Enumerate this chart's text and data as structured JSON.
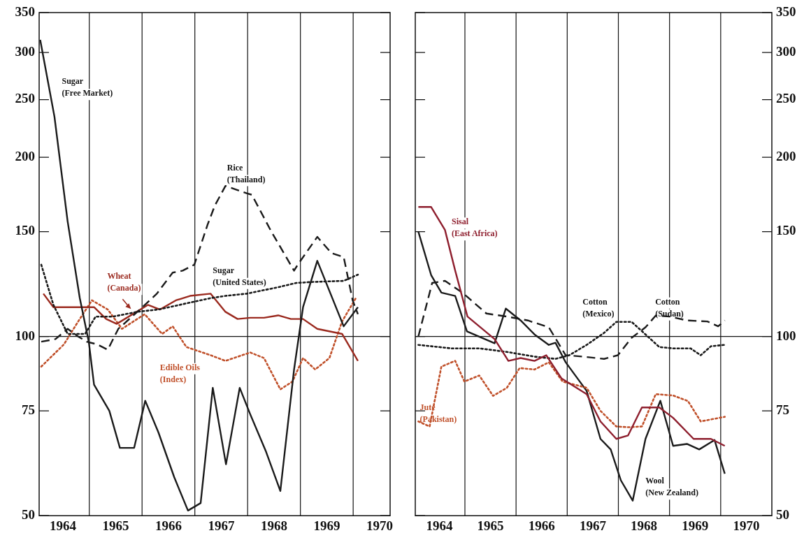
{
  "chart_data": [
    {
      "type": "line",
      "log": "y",
      "grid": false,
      "legend": false,
      "marker": "none",
      "xlim": [
        1963.55,
        1970.2
      ],
      "xticks": [
        1964,
        1965,
        1966,
        1967,
        1968,
        1969,
        1970
      ],
      "ylim": [
        50,
        350
      ],
      "yticks": [
        50,
        75,
        100,
        150,
        200,
        250,
        300,
        350
      ],
      "ref_lines": [
        {
          "axis": "y",
          "value": 100
        },
        {
          "axis": "x",
          "value": 1964.5
        },
        {
          "axis": "x",
          "value": 1965.5
        },
        {
          "axis": "x",
          "value": 1966.5
        },
        {
          "axis": "x",
          "value": 1967.5
        },
        {
          "axis": "x",
          "value": 1968.5
        },
        {
          "axis": "x",
          "value": 1969.5
        }
      ],
      "series": [
        {
          "name": "Sugar (Free Market)",
          "color": "#1a1a1a",
          "line_style": "solid",
          "x": [
            1963.57,
            1963.84,
            1964.09,
            1964.32,
            1964.49,
            1964.59,
            1964.88,
            1965.08,
            1965.35,
            1965.56,
            1965.81,
            1966.11,
            1966.37,
            1966.61,
            1966.84,
            1967.09,
            1967.35,
            1967.55,
            1967.85,
            1968.12,
            1968.38,
            1968.55,
            1968.82,
            1969.32,
            1969.59
          ],
          "values": [
            315,
            234,
            156,
            116,
            98,
            83,
            75,
            65,
            65,
            78,
            69,
            58,
            51,
            52.5,
            82,
            61,
            82,
            74,
            64,
            55,
            88,
            112,
            134,
            104,
            112
          ]
        },
        {
          "name": "Rice (Thailand)",
          "color": "#1a1a1a",
          "line_style": "dashed",
          "x": [
            1963.59,
            1963.86,
            1964.09,
            1964.29,
            1964.45,
            1964.65,
            1964.85,
            1965.05,
            1965.41,
            1965.78,
            1966.08,
            1966.27,
            1966.49,
            1966.74,
            1966.88,
            1967.08,
            1967.48,
            1967.58,
            1967.95,
            1968.38,
            1968.45,
            1968.82,
            1969.09,
            1969.32,
            1969.49,
            1969.59
          ],
          "values": [
            98,
            99,
            103,
            100,
            98,
            97,
            95,
            103,
            110,
            118,
            128,
            129,
            132,
            154,
            166,
            179,
            174,
            173,
            150,
            129,
            132,
            147,
            138,
            136,
            115,
            109
          ]
        },
        {
          "name": "Sugar (United States)",
          "color": "#1a1a1a",
          "line_style": "dotted",
          "x": [
            1963.59,
            1963.82,
            1964.09,
            1964.42,
            1964.62,
            1964.95,
            1965.41,
            1965.81,
            1966.21,
            1966.8,
            1967.08,
            1967.48,
            1968.08,
            1968.42,
            1968.75,
            1969.32,
            1969.59
          ],
          "values": [
            132,
            113,
            101,
            101,
            108,
            108,
            110,
            111,
            113,
            116,
            117,
            118,
            121,
            123,
            123.5,
            124,
            127
          ]
        },
        {
          "name": "Wheat (Canada)",
          "color": "#9b2a1f",
          "line_style": "solid",
          "x": [
            1963.63,
            1963.82,
            1964.59,
            1964.82,
            1965.02,
            1965.61,
            1965.84,
            1966.14,
            1966.41,
            1966.8,
            1967.08,
            1967.31,
            1967.55,
            1967.81,
            1968.08,
            1968.32,
            1968.55,
            1968.82,
            1969.29,
            1969.59
          ],
          "values": [
            118,
            112,
            112,
            107,
            105,
            113,
            111,
            115,
            117,
            118,
            110,
            107,
            107.5,
            107.5,
            108.5,
            107,
            107,
            103,
            101,
            91
          ]
        },
        {
          "name": "Edible Oils (Index)",
          "color": "#c0502a",
          "line_style": "dotted",
          "x": [
            1963.59,
            1964.02,
            1964.29,
            1964.55,
            1964.85,
            1965.12,
            1965.55,
            1965.88,
            1966.08,
            1966.34,
            1966.8,
            1967.08,
            1967.55,
            1967.81,
            1968.12,
            1968.35,
            1968.55,
            1968.78,
            1969.05,
            1969.29,
            1969.55
          ],
          "values": [
            89,
            97,
            106,
            115,
            111,
            103,
            109,
            101,
            104,
            96,
            93,
            91,
            94,
            92,
            81.5,
            84,
            92,
            88,
            92,
            106,
            116
          ]
        }
      ]
    },
    {
      "type": "line",
      "log": "y",
      "grid": false,
      "legend": false,
      "marker": "none",
      "xlim": [
        1963.53,
        1970.5
      ],
      "xticks": [
        1964,
        1965,
        1966,
        1967,
        1968,
        1969,
        1970
      ],
      "ylim": [
        50,
        350
      ],
      "yticks": [
        50,
        75,
        100,
        150,
        200,
        250,
        300,
        350
      ],
      "ref_lines": [
        {
          "axis": "y",
          "value": 100
        },
        {
          "axis": "x",
          "value": 1964.5
        },
        {
          "axis": "x",
          "value": 1965.5
        },
        {
          "axis": "x",
          "value": 1966.5
        },
        {
          "axis": "x",
          "value": 1967.5
        },
        {
          "axis": "x",
          "value": 1968.5
        },
        {
          "axis": "x",
          "value": 1969.5
        }
      ],
      "series": [
        {
          "name": "Sisal (East Africa)",
          "color": "#8e1f2e",
          "line_style": "solid",
          "x": [
            1963.59,
            1963.84,
            1964.11,
            1964.31,
            1964.55,
            1965.08,
            1965.35,
            1965.59,
            1965.86,
            1966.09,
            1966.39,
            1966.88,
            1967.15,
            1967.46,
            1967.69,
            1967.96,
            1968.3,
            1968.57,
            1968.97,
            1969.31,
            1969.58
          ],
          "values": [
            165,
            165,
            151,
            129,
            108,
            99,
            91,
            92,
            91,
            93,
            85,
            80,
            72,
            67.3,
            68.2,
            76,
            76,
            73,
            67.3,
            67.3,
            65.5
          ]
        },
        {
          "name": "Jute (Pakistan)",
          "color": "#c0502a",
          "line_style": "dotted",
          "x": [
            1963.59,
            1963.81,
            1964.04,
            1964.31,
            1964.49,
            1964.78,
            1965.05,
            1965.32,
            1965.57,
            1965.86,
            1966.14,
            1966.41,
            1966.88,
            1967.15,
            1967.46,
            1967.69,
            1967.96,
            1968.23,
            1968.57,
            1968.86,
            1969.11,
            1969.58
          ],
          "values": [
            72,
            70.6,
            89,
            91,
            84,
            86,
            79.5,
            82,
            88.5,
            88,
            90.5,
            84,
            82,
            75,
            70.6,
            70.4,
            70.6,
            80,
            79.6,
            77.9,
            72,
            73.3
          ]
        },
        {
          "name": "Cotton (Mexico)",
          "color": "#1a1a1a",
          "line_style": "dotted",
          "x": [
            1963.59,
            1963.84,
            1964.24,
            1964.78,
            1965.32,
            1965.86,
            1966.27,
            1966.54,
            1966.88,
            1967.22,
            1967.46,
            1967.76,
            1968.03,
            1968.3,
            1968.57,
            1968.91,
            1969.11,
            1969.31,
            1969.58
          ],
          "values": [
            96.8,
            96.3,
            95.5,
            95.5,
            94.2,
            92.5,
            91.7,
            93,
            96.8,
            101.4,
            105.8,
            105.8,
            100.8,
            96,
            95.5,
            95.5,
            93,
            96.3,
            96.8
          ]
        },
        {
          "name": "Cotton (Sudan)",
          "color": "#1a1a1a",
          "line_style": "dashed",
          "x": [
            1963.59,
            1963.86,
            1964.11,
            1964.45,
            1964.92,
            1965.32,
            1965.73,
            1966.14,
            1966.47,
            1966.81,
            1967.22,
            1967.49,
            1967.76,
            1968.03,
            1968.23,
            1968.5,
            1968.84,
            1969.24,
            1969.45,
            1969.58
          ],
          "values": [
            100,
            123,
            124,
            118.5,
            109.3,
            108,
            106.4,
            103.6,
            93,
            92.5,
            91.7,
            93,
            99.5,
            103.6,
            108.4,
            108,
            106.4,
            106,
            104,
            106.4
          ]
        },
        {
          "name": "Wool (New Zealand)",
          "color": "#1a1a1a",
          "line_style": "solid",
          "x": [
            1963.59,
            1963.84,
            1964.04,
            1964.31,
            1964.54,
            1965.08,
            1965.3,
            1965.59,
            1965.86,
            1966.14,
            1966.27,
            1966.47,
            1966.88,
            1967.15,
            1967.35,
            1967.55,
            1967.78,
            1968.03,
            1968.32,
            1968.57,
            1968.84,
            1969.08,
            1969.38,
            1969.58
          ],
          "values": [
            150,
            126.8,
            118.5,
            117,
            102,
            97.4,
            111.4,
            106.4,
            100.8,
            96.8,
            97.6,
            90.5,
            81,
            67.3,
            64.6,
            57.3,
            53,
            67.3,
            78,
            65.5,
            66,
            64.6,
            67,
            58.8
          ]
        }
      ]
    }
  ]
}
